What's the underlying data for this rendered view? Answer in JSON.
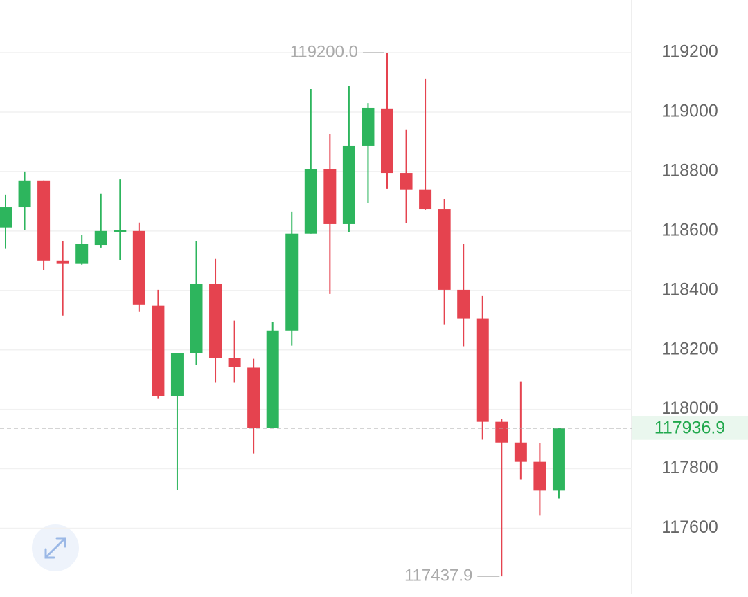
{
  "chart_data": {
    "type": "candlestick",
    "open": [
      118612,
      118681,
      118770,
      118500,
      118491,
      118553,
      118600,
      118600,
      118349,
      118044,
      118188,
      118421,
      118172,
      118140,
      117937,
      118265,
      118591,
      118807,
      118623,
      118886,
      119012,
      118795,
      118740,
      118674,
      118402,
      118305,
      117958,
      117888,
      117823,
      117726
    ],
    "high": [
      118721,
      118800,
      118770,
      118567,
      118588,
      118726,
      118774,
      118628,
      118402,
      118188,
      118567,
      118507,
      118298,
      118170,
      118293,
      118665,
      119077,
      118926,
      119088,
      119030,
      119200,
      118940,
      119112,
      118709,
      118556,
      118381,
      117967,
      118093,
      117886,
      117936.9
    ],
    "low": [
      118540,
      118602,
      118467,
      118314,
      118486,
      118544,
      118502,
      118328,
      118035,
      117728,
      118149,
      118091,
      118091,
      117851,
      117937,
      118214,
      118591,
      118388,
      118595,
      118693,
      118742,
      118626,
      118672,
      118284,
      118212,
      117898,
      117437.9,
      117763,
      117642,
      117700
    ],
    "close": [
      118681,
      118770,
      118500,
      118491,
      118556,
      118600,
      118602,
      118351,
      118044,
      118188,
      118421,
      118172,
      118142,
      117937,
      118265,
      118591,
      118807,
      118623,
      118886,
      119014,
      118795,
      118740,
      118674,
      118402,
      118305,
      117958,
      117888,
      117823,
      117726,
      117936.9
    ],
    "up_color": "#2db55d",
    "down_color": "#e5434f",
    "ylim": [
      117380,
      119377
    ],
    "yticks": [
      117600,
      117800,
      118000,
      118200,
      118400,
      118600,
      118800,
      119000,
      119200
    ],
    "grid": true,
    "max_label": {
      "value": 119200,
      "label": "119200.0"
    },
    "min_label": 117437.9,
    "last_price": 117936.9
  }
}
